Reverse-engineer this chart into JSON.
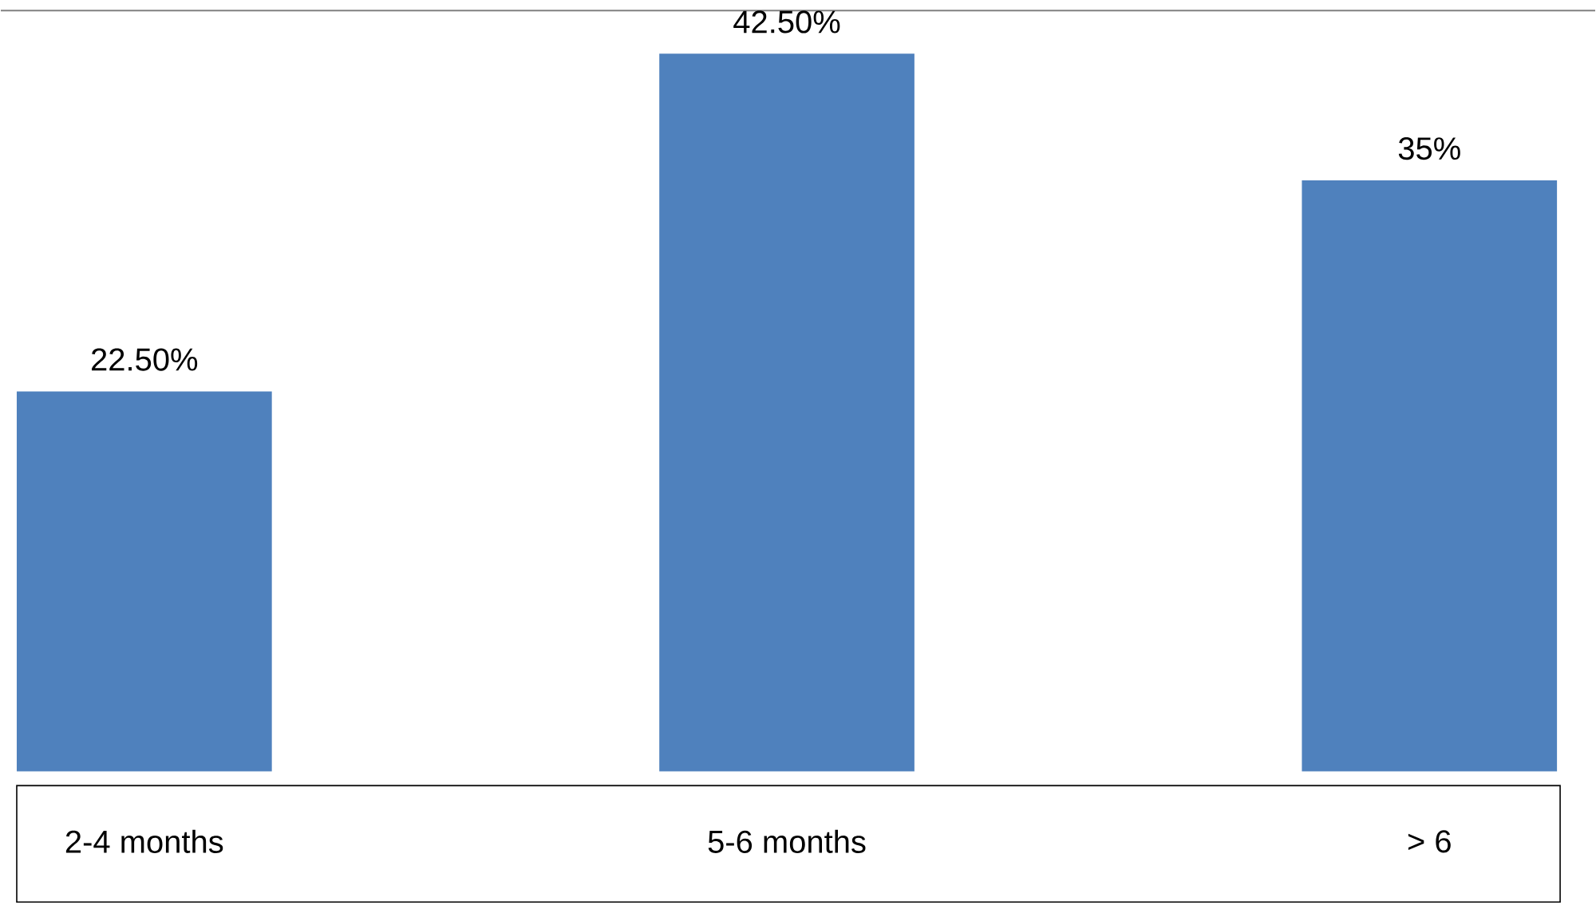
{
  "chart_data": {
    "type": "bar",
    "categories": [
      "2-4 months",
      "5-6 months",
      "> 6"
    ],
    "values": [
      22.5,
      42.5,
      35
    ],
    "value_labels": [
      "22.50%",
      "42.50%",
      "35%"
    ],
    "color": "#4f81bd"
  }
}
